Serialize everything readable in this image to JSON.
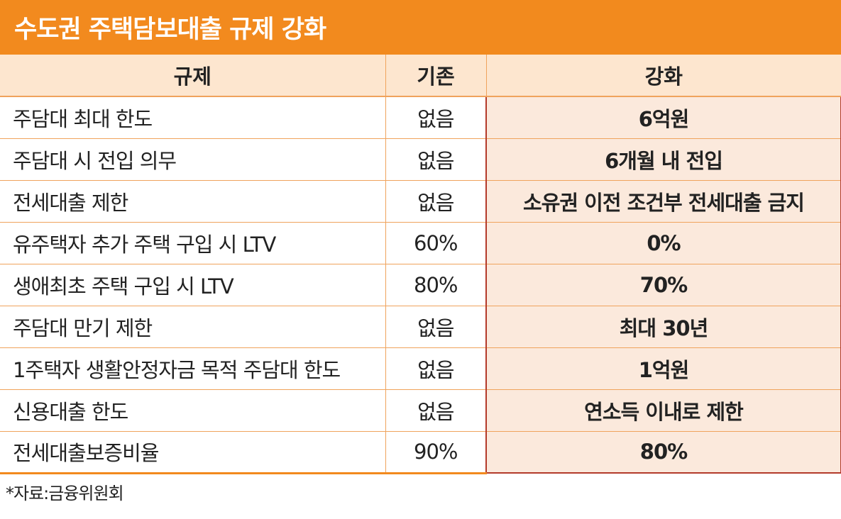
{
  "title": "수도권 주택담보대출 규제 강화",
  "source": "*자료:금융위원회",
  "colors": {
    "title_bg": "#f28a1e",
    "header_bg": "#fde6cf",
    "highlight_bg": "#fbe9dc",
    "highlight_border": "#b33a2a",
    "rule_line": "#f0a35c"
  },
  "chart_data": {
    "type": "table",
    "title": "수도권 주택담보대출 규제 강화",
    "columns": [
      "규제",
      "기존",
      "강화"
    ],
    "rows": [
      [
        "주담대 최대 한도",
        "없음",
        "6억원"
      ],
      [
        "주담대 시 전입 의무",
        "없음",
        "6개월 내 전입"
      ],
      [
        "전세대출 제한",
        "없음",
        "소유권 이전 조건부 전세대출 금지"
      ],
      [
        "유주택자 추가 주택 구입 시 LTV",
        "60%",
        "0%"
      ],
      [
        "생애최초 주택 구입 시 LTV",
        "80%",
        "70%"
      ],
      [
        "주담대 만기 제한",
        "없음",
        "최대 30년"
      ],
      [
        "1주택자 생활안정자금 목적 주담대 한도",
        "없음",
        "1억원"
      ],
      [
        "신용대출 한도",
        "없음",
        "연소득 이내로 제한"
      ],
      [
        "전세대출보증비율",
        "90%",
        "80%"
      ]
    ],
    "highlighted_column": "강화",
    "source": "*자료:금융위원회"
  }
}
